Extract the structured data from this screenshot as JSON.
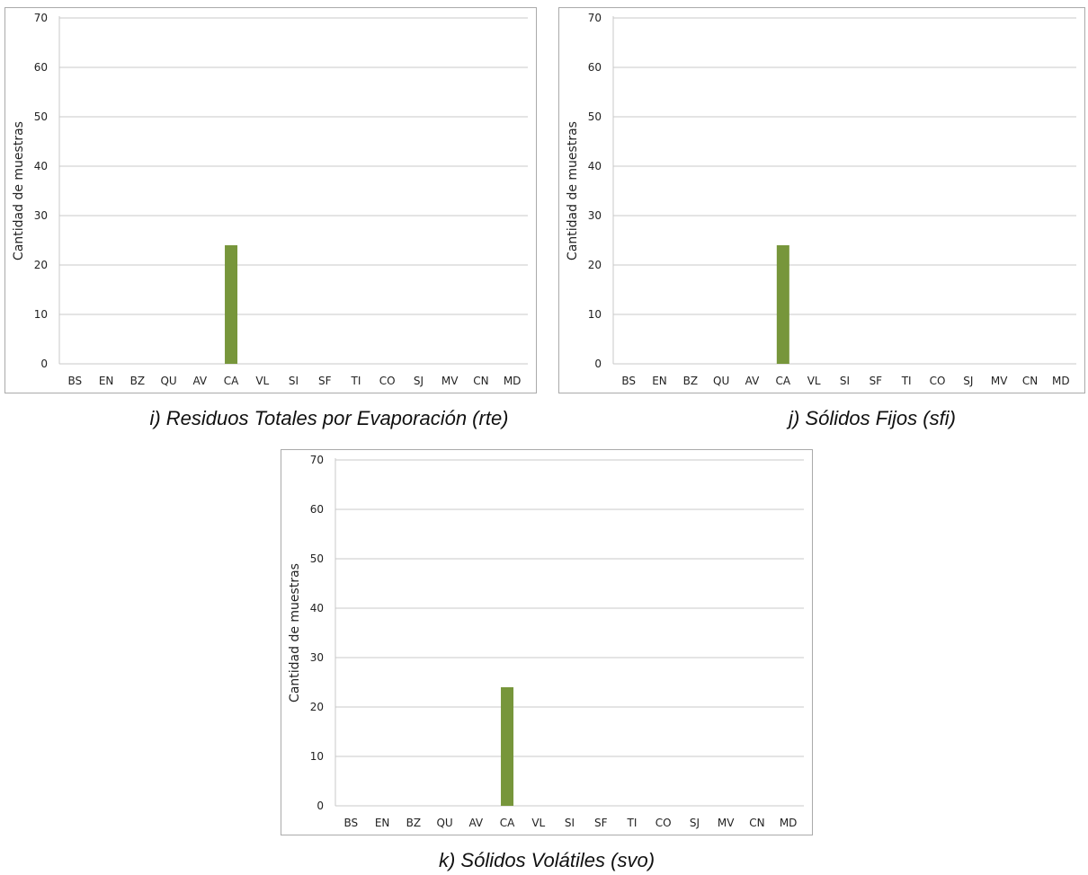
{
  "colors": {
    "bar": "#77963b",
    "grid": "#c8c8c8",
    "frame": "#aaaaaa",
    "text": "#222222"
  },
  "charts": [
    {
      "caption": "i) Residuos Totales por Evaporación (rte)"
    },
    {
      "caption": "j) Sólidos Fijos (sfi)"
    },
    {
      "caption": "k) Sólidos Volátiles (svo)"
    }
  ],
  "chart_data": [
    {
      "type": "bar",
      "title": "",
      "xlabel": "",
      "ylabel": "Cantidad de muestras",
      "ylim": [
        0,
        70
      ],
      "yticks": [
        0,
        10,
        20,
        30,
        40,
        50,
        60,
        70
      ],
      "grid": true,
      "categories": [
        "BS",
        "EN",
        "BZ",
        "QU",
        "AV",
        "CA",
        "VL",
        "SI",
        "SF",
        "TI",
        "CO",
        "SJ",
        "MV",
        "CN",
        "MD"
      ],
      "values": [
        0,
        0,
        0,
        0,
        0,
        24,
        0,
        0,
        0,
        0,
        0,
        0,
        0,
        0,
        0
      ]
    },
    {
      "type": "bar",
      "title": "",
      "xlabel": "",
      "ylabel": "Cantidad de muestras",
      "ylim": [
        0,
        70
      ],
      "yticks": [
        0,
        10,
        20,
        30,
        40,
        50,
        60,
        70
      ],
      "grid": true,
      "categories": [
        "BS",
        "EN",
        "BZ",
        "QU",
        "AV",
        "CA",
        "VL",
        "SI",
        "SF",
        "TI",
        "CO",
        "SJ",
        "MV",
        "CN",
        "MD"
      ],
      "values": [
        0,
        0,
        0,
        0,
        0,
        24,
        0,
        0,
        0,
        0,
        0,
        0,
        0,
        0,
        0
      ]
    },
    {
      "type": "bar",
      "title": "",
      "xlabel": "",
      "ylabel": "Cantidad de muestras",
      "ylim": [
        0,
        70
      ],
      "yticks": [
        0,
        10,
        20,
        30,
        40,
        50,
        60,
        70
      ],
      "grid": true,
      "categories": [
        "BS",
        "EN",
        "BZ",
        "QU",
        "AV",
        "CA",
        "VL",
        "SI",
        "SF",
        "TI",
        "CO",
        "SJ",
        "MV",
        "CN",
        "MD"
      ],
      "values": [
        0,
        0,
        0,
        0,
        0,
        24,
        0,
        0,
        0,
        0,
        0,
        0,
        0,
        0,
        0
      ]
    }
  ]
}
